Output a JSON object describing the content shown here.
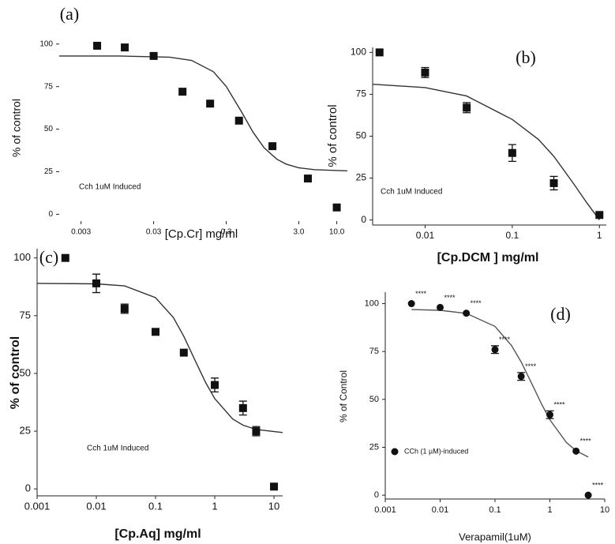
{
  "chart_data": [
    {
      "type": "scatter",
      "panel": "(a)",
      "xlabel": "[Cp.Cr] mg/ml",
      "ylabel": "% of control",
      "annotation": "Cch 1uM Induced",
      "xscale": "log",
      "axes": false,
      "marker": "square",
      "xlim": [
        0.0015,
        14
      ],
      "ylim": [
        -4,
        105
      ],
      "xticks": [
        0.003,
        0.03,
        0.3,
        {
          "value": 3,
          "label": "3.0"
        },
        {
          "value": 10,
          "label": "10.0"
        }
      ],
      "yticks": [
        0,
        25,
        50,
        75,
        100
      ],
      "series": [
        {
          "color": "#111111",
          "x": [
            0.005,
            0.012,
            0.03,
            0.075,
            0.18,
            0.45,
            1.3,
            4,
            10
          ],
          "values": [
            99,
            98,
            93,
            72,
            65,
            55,
            40,
            21,
            4
          ]
        }
      ],
      "fit": {
        "color": "#333333",
        "x": [
          0.0015,
          0.01,
          0.05,
          0.1,
          0.2,
          0.3,
          0.5,
          0.7,
          1,
          1.5,
          2,
          3,
          5,
          14
        ],
        "values": [
          93,
          93,
          92.3,
          90.4,
          83.7,
          75.1,
          59.3,
          48.3,
          39.0,
          32.3,
          29.5,
          27.3,
          26.2,
          25.5
        ]
      }
    },
    {
      "type": "scatter",
      "panel": "(b)",
      "xlabel": "[Cp.DCM ] mg/ml",
      "ylabel": "% of control",
      "annotation": "Cch 1uM Induced",
      "xscale": "log",
      "axes": true,
      "marker": "square",
      "xlim": [
        0.0025,
        1.2
      ],
      "ylim": [
        -3,
        103
      ],
      "xticks": [
        0.01,
        0.1,
        1
      ],
      "yticks": [
        0,
        25,
        50,
        75,
        100
      ],
      "series": [
        {
          "color": "#111111",
          "x": [
            0.003,
            0.01,
            0.03,
            0.1,
            0.3,
            1
          ],
          "values": [
            100,
            88,
            67,
            40,
            22,
            3
          ],
          "errors": [
            null,
            3,
            3,
            5,
            4,
            null
          ]
        }
      ],
      "fit": {
        "color": "#333333",
        "x": [
          0.0025,
          0.01,
          0.03,
          0.1,
          0.2,
          0.3,
          0.5,
          0.7,
          1
        ],
        "values": [
          81,
          79,
          74,
          60,
          48,
          38,
          22,
          11,
          0
        ]
      }
    },
    {
      "type": "scatter",
      "panel": "(c)",
      "xlabel": "[Cp.Aq] mg/ml",
      "ylabel": "% of control",
      "annotation": "Cch 1uM Induced",
      "xscale": "log",
      "axes": true,
      "marker": "square",
      "xlim": [
        0.001,
        14
      ],
      "ylim": [
        -3,
        104
      ],
      "xticks": [
        0.001,
        0.01,
        0.1,
        1,
        10
      ],
      "yticks": [
        0,
        25,
        50,
        75,
        100
      ],
      "series": [
        {
          "color": "#111111",
          "x": [
            0.003,
            0.01,
            0.03,
            0.1,
            0.3,
            1,
            3,
            5,
            10
          ],
          "values": [
            100,
            89,
            78,
            68,
            59,
            45,
            35,
            25,
            1
          ],
          "errors": [
            null,
            4,
            2,
            null,
            null,
            3,
            3,
            2,
            null
          ]
        }
      ],
      "fit": {
        "color": "#333333",
        "x": [
          0.001,
          0.01,
          0.03,
          0.1,
          0.2,
          0.3,
          0.5,
          0.7,
          1,
          2,
          3,
          5,
          14
        ],
        "values": [
          89,
          88.8,
          87.9,
          82.8,
          74.2,
          66.1,
          54.0,
          46.1,
          39.1,
          30.3,
          27.6,
          25.7,
          24.4
        ]
      }
    },
    {
      "type": "scatter",
      "panel": "(d)",
      "xlabel": "Verapamil(1uM)",
      "ylabel": "% of Control",
      "xscale": "log",
      "axes": true,
      "marker": "circle",
      "xlim": [
        0.001,
        10
      ],
      "ylim": [
        -2,
        106
      ],
      "xticks": [
        0.001,
        0.01,
        0.1,
        1,
        10
      ],
      "yticks": [
        0,
        25,
        50,
        75,
        100
      ],
      "series": [
        {
          "name": "CCh (1 µM)-induced",
          "color": "#111111",
          "x": [
            0.003,
            0.01,
            0.03,
            0.1,
            0.3,
            1,
            3,
            5
          ],
          "values": [
            100,
            98,
            95,
            76,
            62,
            42,
            23,
            0
          ],
          "errors": [
            null,
            null,
            null,
            2,
            2,
            2,
            null,
            null
          ],
          "annotations": [
            "****",
            "****",
            "****",
            "****",
            "****",
            "****",
            "****",
            "****"
          ]
        }
      ],
      "fit": {
        "color": "#555555",
        "x": [
          0.003,
          0.01,
          0.03,
          0.1,
          0.2,
          0.3,
          0.5,
          0.7,
          1,
          2,
          3,
          5
        ],
        "values": [
          96.9,
          96.5,
          94.9,
          88.1,
          78.1,
          69.5,
          56.5,
          47.8,
          39.4,
          27.5,
          23.2,
          19.9
        ]
      }
    }
  ]
}
